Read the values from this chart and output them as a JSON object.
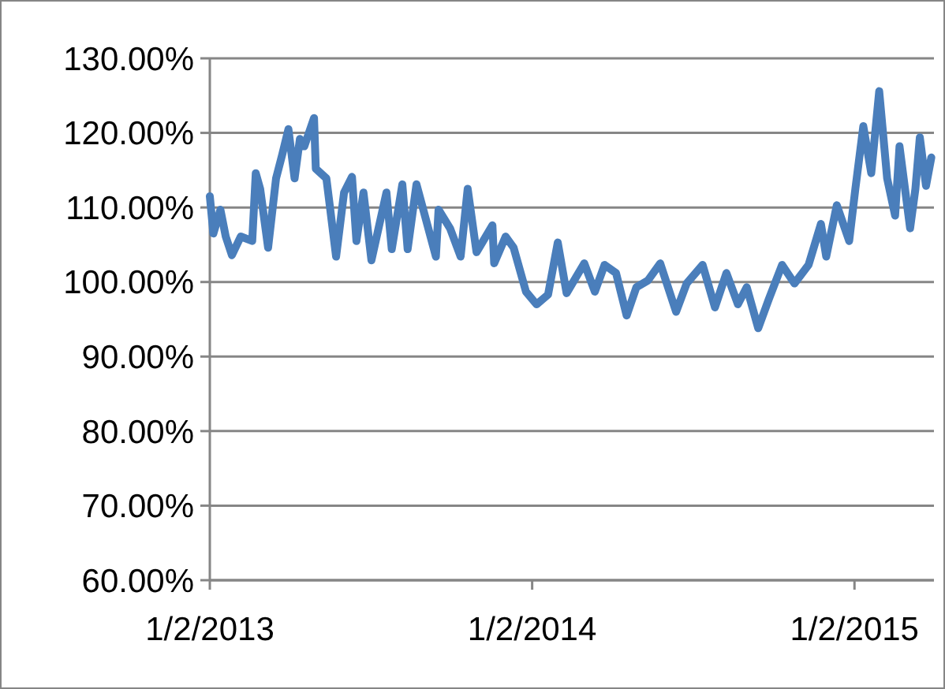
{
  "chart_data": {
    "type": "line",
    "grid": "y",
    "line_style": "solid",
    "marker": "none",
    "xlim": [
      "2013-01-02",
      "2015-04-02"
    ],
    "xticks": [
      {
        "value": "2013-01-02",
        "label": "1/2/2013"
      },
      {
        "value": "2014-01-02",
        "label": "1/2/2014"
      },
      {
        "value": "2015-01-02",
        "label": "1/2/2015"
      }
    ],
    "ylim": [
      60,
      130
    ],
    "yticks": [
      {
        "value": 60,
        "label": "60.00%"
      },
      {
        "value": 70,
        "label": "70.00%"
      },
      {
        "value": 80,
        "label": "80.00%"
      },
      {
        "value": 90,
        "label": "90.00%"
      },
      {
        "value": 100,
        "label": "100.00%"
      },
      {
        "value": 110,
        "label": "110.00%"
      },
      {
        "value": 120,
        "label": "120.00%"
      },
      {
        "value": 130,
        "label": "130.00%"
      }
    ],
    "x": [
      "2013-01-02",
      "2013-01-06",
      "2013-01-14",
      "2013-01-20",
      "2013-01-27",
      "2013-02-06",
      "2013-02-19",
      "2013-02-23",
      "2013-02-28",
      "2013-03-09",
      "2013-03-18",
      "2013-03-25",
      "2013-04-01",
      "2013-04-08",
      "2013-04-14",
      "2013-04-19",
      "2013-04-30",
      "2013-05-02",
      "2013-05-14",
      "2013-05-25",
      "2013-06-03",
      "2013-06-12",
      "2013-06-17",
      "2013-06-25",
      "2013-07-04",
      "2013-07-21",
      "2013-07-27",
      "2013-08-08",
      "2013-08-14",
      "2013-08-24",
      "2013-09-15",
      "2013-09-18",
      "2013-10-01",
      "2013-10-13",
      "2013-10-21",
      "2013-10-31",
      "2013-11-18",
      "2013-11-20",
      "2013-12-03",
      "2013-12-12",
      "2013-12-26",
      "2014-01-07",
      "2014-01-20",
      "2014-01-31",
      "2014-02-10",
      "2014-03-02",
      "2014-03-14",
      "2014-03-25",
      "2014-04-07",
      "2014-04-19",
      "2014-04-30",
      "2014-05-13",
      "2014-05-27",
      "2014-06-14",
      "2014-06-26",
      "2014-07-14",
      "2014-07-28",
      "2014-08-10",
      "2014-08-23",
      "2014-09-02",
      "2014-09-15",
      "2014-09-27",
      "2014-10-12",
      "2014-10-26",
      "2014-11-11",
      "2014-11-25",
      "2014-12-01",
      "2014-12-13",
      "2014-12-27",
      "2015-01-03",
      "2015-01-12",
      "2015-01-21",
      "2015-01-30",
      "2015-02-08",
      "2015-02-17",
      "2015-02-22",
      "2015-03-06",
      "2015-03-12",
      "2015-03-17",
      "2015-03-24",
      "2015-03-30"
    ],
    "series": [
      {
        "color": "#4a7ebb",
        "values": [
          111.5,
          106.5,
          109.7,
          106.1,
          103.6,
          106.1,
          105.5,
          114.6,
          112.5,
          104.6,
          113.9,
          117.1,
          120.5,
          113.9,
          119.2,
          118.2,
          122.0,
          115.2,
          113.9,
          103.4,
          112.0,
          114.1,
          105.5,
          112.0,
          102.9,
          112.0,
          104.4,
          113.1,
          104.4,
          113.1,
          103.4,
          109.7,
          107.2,
          103.4,
          112.5,
          104.0,
          107.6,
          102.5,
          106.1,
          104.6,
          98.7,
          97.0,
          98.3,
          105.3,
          98.5,
          102.5,
          98.7,
          102.3,
          101.2,
          95.5,
          99.3,
          100.2,
          102.5,
          96.0,
          99.8,
          102.3,
          96.6,
          101.2,
          97.0,
          99.3,
          93.8,
          97.7,
          102.3,
          99.8,
          102.3,
          107.8,
          103.4,
          110.3,
          105.5,
          112.5,
          120.9,
          114.6,
          125.6,
          113.9,
          108.9,
          118.2,
          107.2,
          112.5,
          119.4,
          112.9,
          116.7
        ]
      }
    ]
  }
}
